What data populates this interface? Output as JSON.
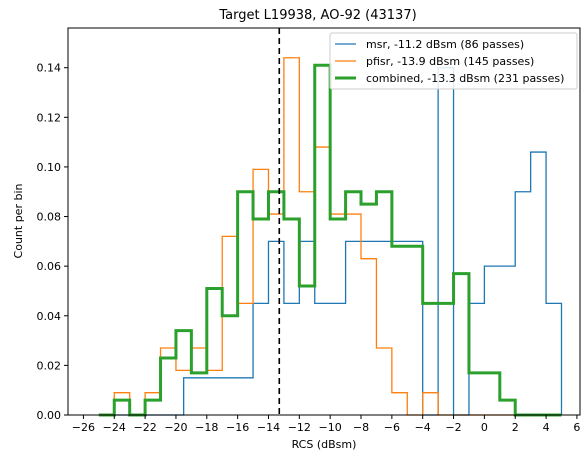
{
  "chart_data": {
    "type": "histogram-step",
    "title": "Target L19938, AO-92 (43137)",
    "xlabel": "RCS (dBsm)",
    "ylabel": "Count per bin",
    "xlim": [
      -27,
      6.2
    ],
    "ylim": [
      0,
      0.156
    ],
    "xticks": [
      -26,
      -24,
      -22,
      -20,
      -18,
      -16,
      -14,
      -12,
      -10,
      -8,
      -6,
      -4,
      -2,
      0,
      2,
      4,
      6
    ],
    "yticks": [
      0.0,
      0.02,
      0.04,
      0.06,
      0.08,
      0.1,
      0.12,
      0.14
    ],
    "ytick_labels": [
      "0.00",
      "0.02",
      "0.04",
      "0.06",
      "0.08",
      "0.10",
      "0.12",
      "0.14"
    ],
    "grid": false,
    "legend_position": "top-right",
    "bin_edges": [
      -25,
      -24.5,
      -24,
      -23.5,
      -23,
      -22.5,
      -22,
      -21.5,
      -21,
      -20.5,
      -20,
      -19.5,
      -19,
      -18.5,
      -18,
      -17.5,
      -17,
      -16.5,
      -16,
      -15.5,
      -15,
      -14.5,
      -14,
      -13.5,
      -13,
      -12.5,
      -12,
      -11.5,
      -11,
      -10.5,
      -10,
      -9.5,
      -9,
      -8.5,
      -8,
      -7.5,
      -7,
      -6.5,
      -6,
      -5.5,
      -5,
      -4.5,
      -4,
      -3.5,
      -3,
      -2.5,
      -2,
      -1.5,
      -1,
      -0.5,
      0,
      0.5,
      1,
      1.5,
      2,
      2.5,
      3,
      3.5,
      4,
      4.5,
      5
    ],
    "series": [
      {
        "name": "msr, -11.2 dBsm (86 passes)",
        "color": "#1f77b4",
        "line_width": 1.3,
        "values": [
          0,
          0,
          0,
          0,
          0,
          0,
          0,
          0,
          0,
          0,
          0,
          0.015,
          0.015,
          0.015,
          0.015,
          0.015,
          0.015,
          0.015,
          0.015,
          0.015,
          0.045,
          0.045,
          0.07,
          0.07,
          0.045,
          0.045,
          0.07,
          0.07,
          0.045,
          0.045,
          0.045,
          0.045,
          0.07,
          0.07,
          0.07,
          0.07,
          0.07,
          0.07,
          0.07,
          0.07,
          0.07,
          0.07,
          0.0,
          0.0,
          0.14,
          0.14,
          0.0,
          0.0,
          0.045,
          0.045,
          0.06,
          0.06,
          0.06,
          0.06,
          0.09,
          0.09,
          0.106,
          0.106,
          0.045,
          0.045
        ]
      },
      {
        "name": "pfisr, -13.9 dBsm (145 passes)",
        "color": "#ff7f0e",
        "line_width": 1.3,
        "values": [
          0,
          0,
          0.009,
          0.009,
          0,
          0,
          0.009,
          0.009,
          0.027,
          0.027,
          0.018,
          0.018,
          0.027,
          0.027,
          0.018,
          0.018,
          0.072,
          0.072,
          0.045,
          0.045,
          0.099,
          0.099,
          0.081,
          0.081,
          0.144,
          0.144,
          0.09,
          0.09,
          0.108,
          0.108,
          0.081,
          0.081,
          0.081,
          0.081,
          0.063,
          0.063,
          0.027,
          0.027,
          0.009,
          0.009,
          0,
          0,
          0.009,
          0.009,
          0,
          0,
          0,
          0,
          0,
          0,
          0,
          0,
          0,
          0,
          0,
          0,
          0,
          0,
          0,
          0
        ]
      },
      {
        "name": "combined, -13.3 dBsm (231 passes)",
        "color": "#2ca02c",
        "line_width": 3,
        "values": [
          0,
          0,
          0.006,
          0.006,
          0,
          0,
          0.006,
          0.006,
          0.023,
          0.023,
          0.034,
          0.034,
          0.017,
          0.017,
          0.051,
          0.051,
          0.04,
          0.04,
          0.09,
          0.09,
          0.079,
          0.079,
          0.09,
          0.09,
          0.079,
          0.079,
          0.052,
          0.052,
          0.141,
          0.141,
          0.079,
          0.079,
          0.09,
          0.09,
          0.085,
          0.085,
          0.09,
          0.09,
          0.068,
          0.068,
          0.068,
          0.068,
          0.045,
          0.045,
          0.045,
          0.045,
          0.057,
          0.057,
          0.017,
          0.017,
          0.017,
          0.017,
          0.006,
          0.006,
          0,
          0,
          0,
          0,
          0,
          0
        ]
      }
    ],
    "vline": {
      "x": -13.3,
      "style": "dashed",
      "color": "#000000"
    }
  }
}
